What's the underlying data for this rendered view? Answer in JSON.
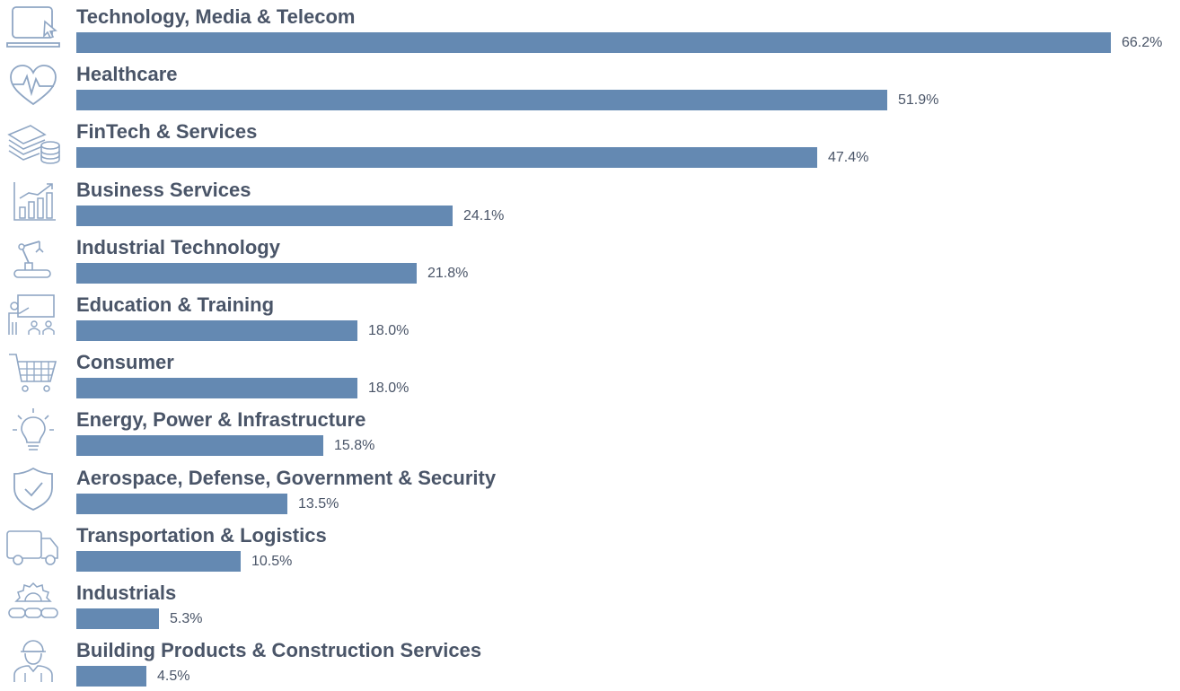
{
  "chart_data": {
    "type": "bar",
    "orientation": "horizontal",
    "bar_color": "#6489b2",
    "text_color": "#4a5568",
    "icon_color": "#8fa6c4",
    "xlim": [
      0,
      66.2
    ],
    "categories": [
      "Technology, Media & Telecom",
      "Healthcare",
      "FinTech & Services",
      "Business Services",
      "Industrial Technology",
      "Education & Training",
      "Consumer",
      "Energy, Power & Infrastructure",
      "Aerospace, Defense, Government & Security",
      "Transportation & Logistics",
      "Industrials",
      "Building Products & Construction Services"
    ],
    "values": [
      66.2,
      51.9,
      47.4,
      24.1,
      21.8,
      18.0,
      18.0,
      15.8,
      13.5,
      10.5,
      5.3,
      4.5
    ],
    "value_labels": [
      "66.2%",
      "51.9%",
      "47.4%",
      "24.1%",
      "21.8%",
      "18.0%",
      "18.0%",
      "15.8%",
      "13.5%",
      "10.5%",
      "5.3%",
      "4.5%"
    ],
    "icons": [
      "laptop-cursor-icon",
      "heart-pulse-icon",
      "money-coins-icon",
      "growth-chart-icon",
      "robot-arm-icon",
      "classroom-icon",
      "shopping-cart-icon",
      "lightbulb-icon",
      "shield-check-icon",
      "delivery-truck-icon",
      "gear-chain-icon",
      "construction-worker-icon"
    ]
  }
}
